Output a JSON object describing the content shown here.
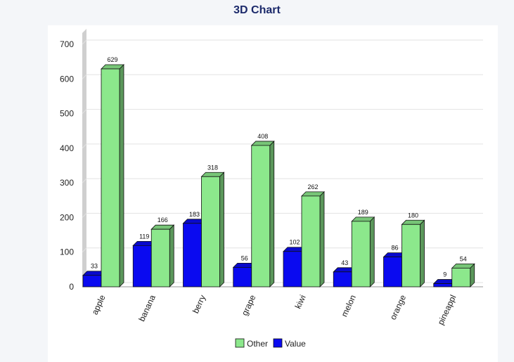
{
  "chart_data": {
    "type": "bar",
    "title": "3D Chart",
    "categories": [
      "apple",
      "banana",
      "berry",
      "grape",
      "kiwi",
      "melon",
      "orange",
      "pineappl"
    ],
    "series": [
      {
        "name": "Value",
        "values": [
          33,
          119,
          183,
          56,
          102,
          43,
          86,
          9
        ],
        "color": "#0a0af0"
      },
      {
        "name": "Other",
        "values": [
          629,
          166,
          318,
          408,
          262,
          189,
          180,
          54
        ],
        "color": "#8ce88c"
      }
    ],
    "legend_order": [
      "Other",
      "Value"
    ],
    "legend_position": "bottom",
    "ylim": [
      0,
      700
    ],
    "yticks": [
      0,
      100,
      200,
      300,
      400,
      500,
      600,
      700
    ],
    "grid": true,
    "data_labels": true,
    "three_d": true
  }
}
